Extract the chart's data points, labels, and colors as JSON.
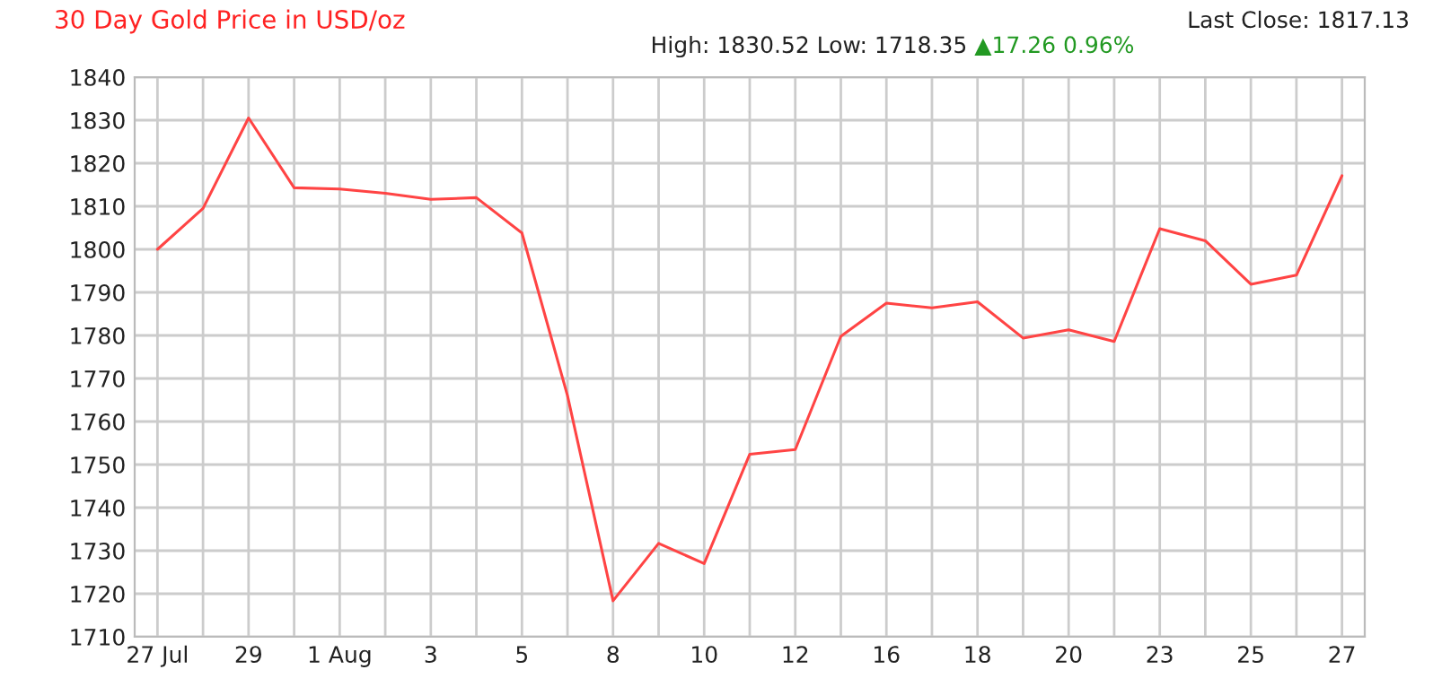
{
  "chart_data": {
    "type": "line",
    "title": "30 Day Gold Price in USD/oz",
    "annotations": [
      "High: 1830.52 Low: 1718.35",
      "▲17.26 0.96%",
      "Last Close: 1817.13"
    ],
    "categories": [
      "27 Jul",
      null,
      "29",
      null,
      "1 Aug",
      null,
      "3",
      null,
      "5",
      null,
      "8",
      null,
      "10",
      null,
      "12",
      null,
      "16",
      null,
      "18",
      null,
      "20",
      null,
      "23",
      null,
      "25",
      null,
      "27"
    ],
    "series": [
      {
        "color": "#ff4444",
        "values": [
          1800,
          1809.5,
          1830.52,
          1814.3,
          1814,
          1813,
          1811.6,
          1812,
          1803.8,
          1766,
          1718.35,
          1731.7,
          1727,
          1752.4,
          1753.5,
          1779.8,
          1787.5,
          1786.4,
          1787.8,
          1779.4,
          1781.3,
          1778.6,
          1804.8,
          1802,
          1791.9,
          1794,
          1817.13
        ]
      }
    ],
    "ylim": [
      1710,
      1840
    ],
    "yticks": [
      1710,
      1720,
      1730,
      1740,
      1750,
      1760,
      1770,
      1780,
      1790,
      1800,
      1810,
      1820,
      1830,
      1840
    ],
    "grid": true,
    "legend": false
  }
}
